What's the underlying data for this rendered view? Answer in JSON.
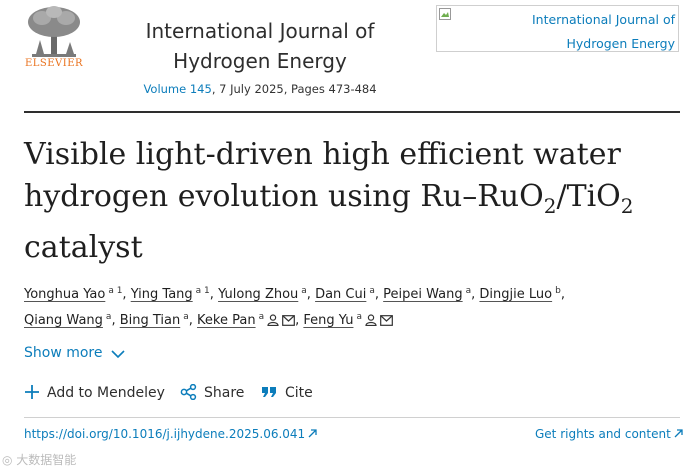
{
  "header": {
    "publisher_logo_text": "ELSEVIER",
    "journal_title": "International Journal of Hydrogen Energy",
    "volume_link": "Volume 145",
    "issue_rest": ", 7 July 2025, Pages 473-484",
    "cover_image_alt": "International Journal of Hydrogen Energy"
  },
  "article": {
    "title_line1": "Visible light-driven high efficient water",
    "title_line2_pre": "hydrogen evolution using Ru–RuO",
    "title_sub1": "2",
    "title_line2_mid": "/TiO",
    "title_sub2": "2",
    "title_line3": "catalyst"
  },
  "authors": [
    {
      "name": "Yonghua Yao",
      "aff": "a 1",
      "sep": ","
    },
    {
      "name": "Ying Tang",
      "aff": "a 1",
      "sep": ","
    },
    {
      "name": "Yulong Zhou",
      "aff": "a",
      "sep": ","
    },
    {
      "name": "Dan Cui",
      "aff": "a",
      "sep": ","
    },
    {
      "name": "Peipei Wang",
      "aff": "a",
      "sep": ","
    },
    {
      "name": "Dingjie Luo",
      "aff": "b",
      "sep": ","
    },
    {
      "name": "Qiang Wang",
      "aff": "a",
      "sep": ","
    },
    {
      "name": "Bing Tian",
      "aff": "a",
      "sep": ","
    },
    {
      "name": "Keke Pan",
      "aff": "a",
      "sep": ","
    },
    {
      "name": "Feng Yu",
      "aff": "a",
      "sep": ""
    }
  ],
  "show_more_label": "Show more",
  "actions": {
    "mendeley": "Add to Mendeley",
    "share": "Share",
    "cite": "Cite"
  },
  "links": {
    "doi": "https://doi.org/10.1016/j.ijhydene.2025.06.041",
    "rights": "Get rights and content"
  },
  "colors": {
    "link": "#0c7dbb",
    "elsevier_orange": "#e9711c"
  },
  "watermark": "大数据智能"
}
